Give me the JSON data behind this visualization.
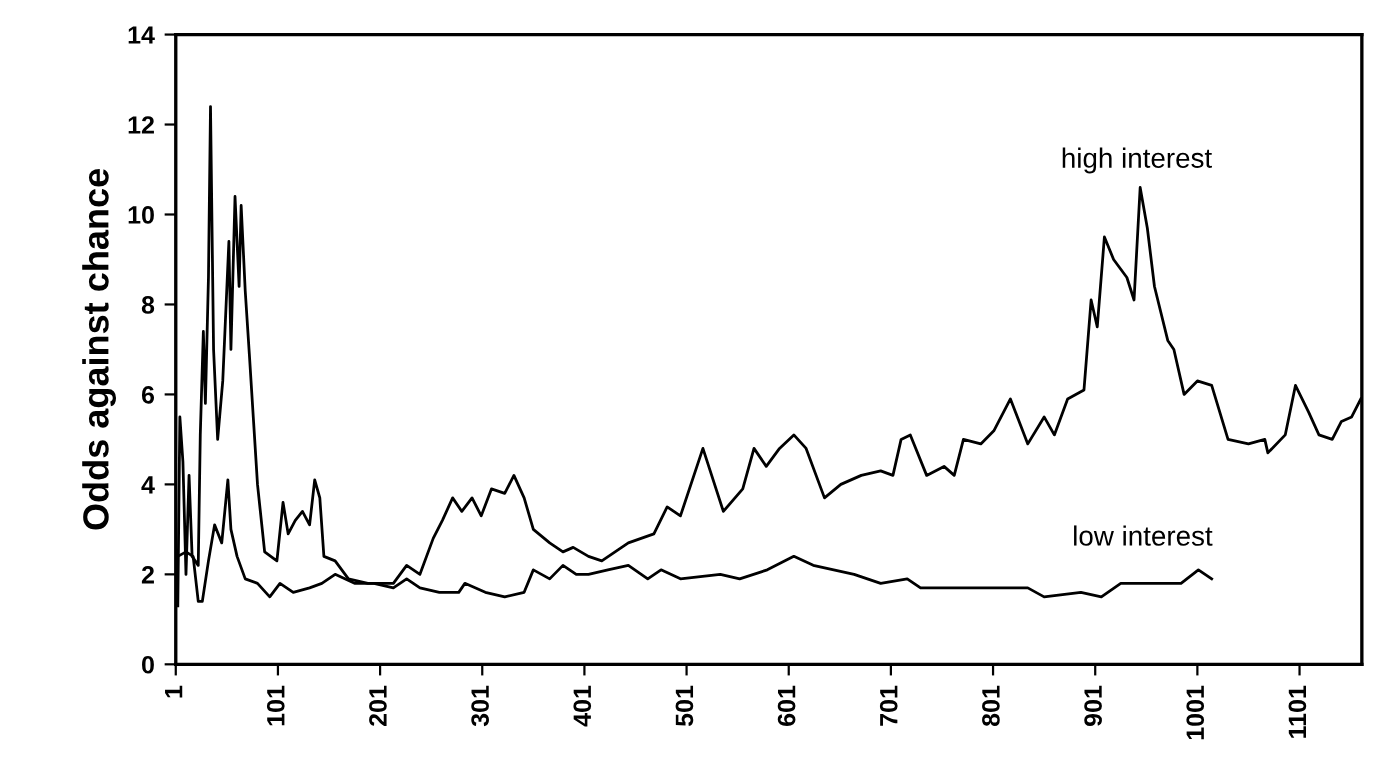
{
  "chart_data": {
    "type": "line",
    "ylabel": "Odds against chance",
    "xlim": [
      1,
      1162
    ],
    "xticks": [
      1,
      101,
      201,
      301,
      401,
      501,
      601,
      701,
      801,
      901,
      1001,
      1101
    ],
    "ylim": [
      0,
      14
    ],
    "yticks": [
      0,
      2,
      4,
      6,
      8,
      10,
      12,
      14
    ],
    "grid": false,
    "legend": false,
    "marker": "none",
    "line_style": "solid",
    "series": [
      {
        "name": "high interest",
        "color": "#000000",
        "x": [
          3,
          5,
          8,
          11,
          14,
          17,
          23,
          25,
          28,
          30,
          33,
          35,
          38,
          42,
          47,
          53,
          55,
          59,
          63,
          65,
          69,
          73,
          81,
          88,
          100,
          106,
          111,
          118,
          125,
          132,
          137,
          142,
          146,
          157,
          170,
          189,
          214,
          227,
          240,
          253,
          262,
          272,
          281,
          291,
          300,
          310,
          323,
          332,
          342,
          351,
          367,
          380,
          390,
          405,
          418,
          431,
          444,
          469,
          482,
          495,
          517,
          537,
          556,
          567,
          579,
          592,
          606,
          618,
          636,
          652,
          672,
          691,
          703,
          711,
          720,
          736,
          753,
          763,
          772,
          789,
          802,
          818,
          835,
          851,
          861,
          874,
          890,
          897,
          903,
          910,
          919,
          932,
          939,
          945,
          952,
          959,
          972,
          978,
          988,
          1001,
          1015,
          1031,
          1051,
          1067,
          1070,
          1087,
          1097,
          1110,
          1120,
          1133,
          1142,
          1152,
          1161
        ],
        "values": [
          1.3,
          5.5,
          4.5,
          2.0,
          4.2,
          2.4,
          2.2,
          5.1,
          7.4,
          5.8,
          8.6,
          12.4,
          7.0,
          5.0,
          6.3,
          9.4,
          7.0,
          10.4,
          8.4,
          10.2,
          8.3,
          6.9,
          4.0,
          2.5,
          2.3,
          3.6,
          2.9,
          3.2,
          3.4,
          3.1,
          4.1,
          3.7,
          2.4,
          2.3,
          1.9,
          1.8,
          1.8,
          2.2,
          2.0,
          2.8,
          3.2,
          3.7,
          3.4,
          3.7,
          3.3,
          3.9,
          3.8,
          4.2,
          3.7,
          3.0,
          2.7,
          2.5,
          2.6,
          2.4,
          2.3,
          2.5,
          2.7,
          2.9,
          3.5,
          3.3,
          4.8,
          3.4,
          3.9,
          4.8,
          4.4,
          4.8,
          5.1,
          4.8,
          3.7,
          4.0,
          4.2,
          4.3,
          4.2,
          5.0,
          5.1,
          4.2,
          4.4,
          4.2,
          5.0,
          4.9,
          5.2,
          5.9,
          4.9,
          5.5,
          5.1,
          5.9,
          6.1,
          8.1,
          7.5,
          9.5,
          9.0,
          8.6,
          8.1,
          10.6,
          9.7,
          8.4,
          7.2,
          7.0,
          6.0,
          6.3,
          6.2,
          5.0,
          4.9,
          5.0,
          4.7,
          5.1,
          6.2,
          5.6,
          5.1,
          5.0,
          5.4,
          5.5,
          5.9
        ]
      },
      {
        "name": "low interest",
        "color": "#000000",
        "x": [
          1,
          3,
          11,
          18,
          23,
          27,
          33,
          39,
          46,
          52,
          55,
          61,
          69,
          81,
          93,
          103,
          116,
          132,
          144,
          157,
          176,
          195,
          214,
          227,
          240,
          259,
          278,
          284,
          304,
          323,
          342,
          351,
          367,
          380,
          393,
          405,
          424,
          444,
          463,
          476,
          495,
          534,
          553,
          580,
          606,
          625,
          665,
          691,
          717,
          730,
          769,
          802,
          835,
          851,
          887,
          907,
          926,
          946,
          966,
          985,
          1002,
          1015
        ],
        "values": [
          2.0,
          2.4,
          2.5,
          2.4,
          1.4,
          1.4,
          2.3,
          3.1,
          2.7,
          4.1,
          3.0,
          2.4,
          1.9,
          1.8,
          1.5,
          1.8,
          1.6,
          1.7,
          1.8,
          2.0,
          1.8,
          1.8,
          1.7,
          1.9,
          1.7,
          1.6,
          1.6,
          1.8,
          1.6,
          1.5,
          1.6,
          2.1,
          1.9,
          2.2,
          2.0,
          2.0,
          2.1,
          2.2,
          1.9,
          2.1,
          1.9,
          2.0,
          1.9,
          2.1,
          2.4,
          2.2,
          2.0,
          1.8,
          1.9,
          1.7,
          1.7,
          1.7,
          1.7,
          1.5,
          1.6,
          1.5,
          1.8,
          1.8,
          1.8,
          1.8,
          2.1,
          1.9
        ]
      }
    ]
  }
}
